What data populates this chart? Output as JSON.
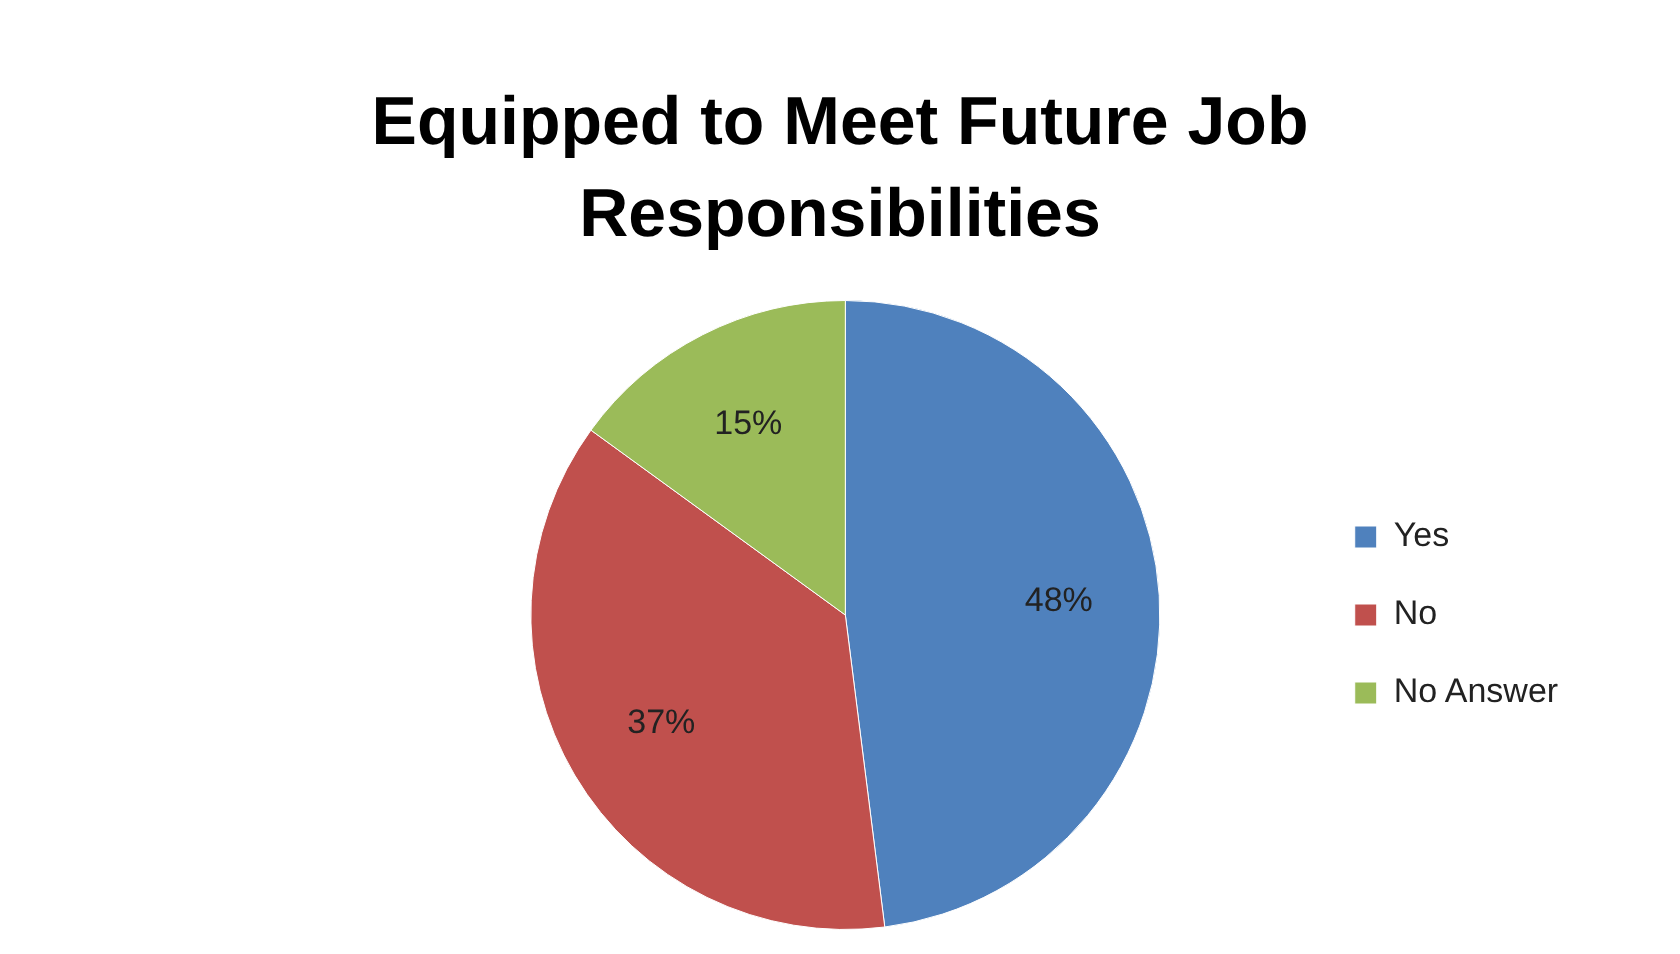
{
  "chart_data": {
    "type": "pie",
    "title": "Equipped to Meet Future Job Responsibilities",
    "categories": [
      "Yes",
      "No",
      "No Answer"
    ],
    "values": [
      48,
      37,
      15
    ],
    "colors": [
      "#4f81bd",
      "#c0504d",
      "#9bbb59"
    ],
    "value_labels": [
      "48%",
      "37%",
      "15%"
    ],
    "legend": "right"
  }
}
